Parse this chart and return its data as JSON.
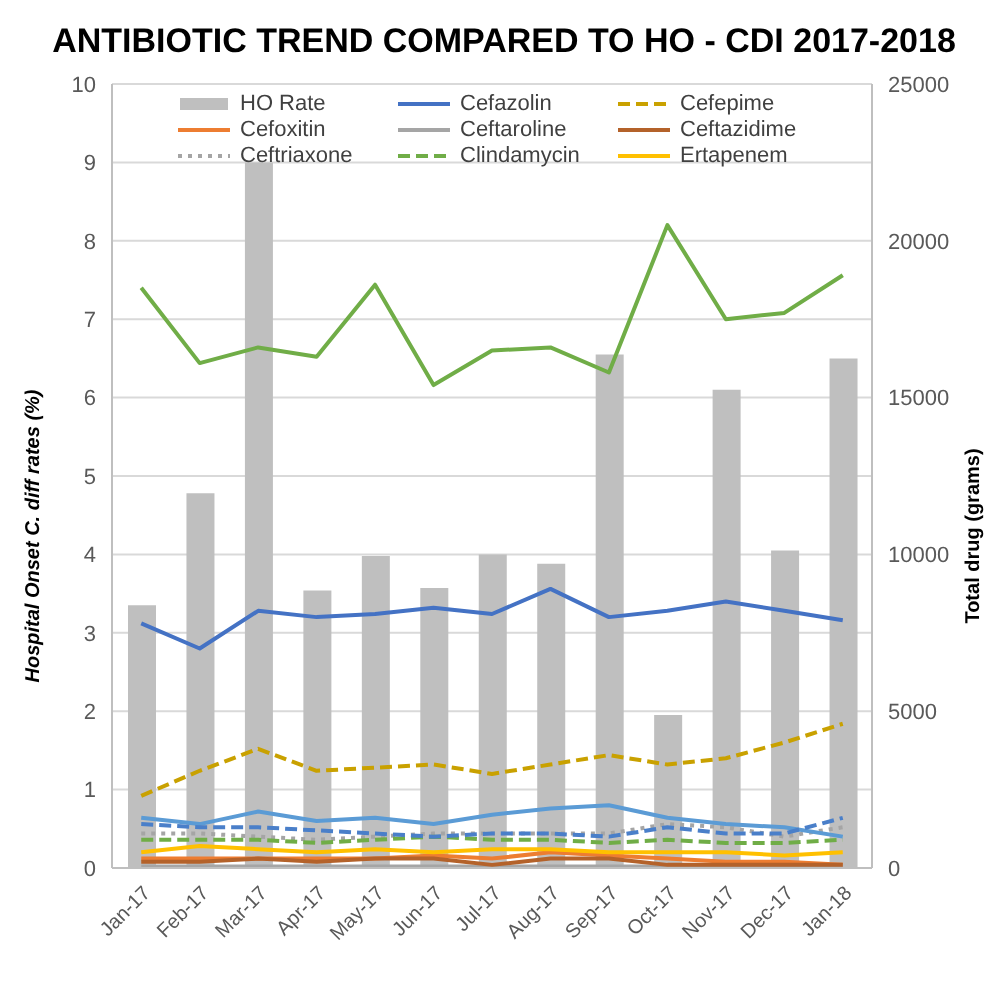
{
  "chart_data": {
    "type": "bar",
    "title": "ANTIBIOTIC TREND COMPARED TO HO - CDI 2017-2018",
    "ylabel": "Hospital Onset C. diff rates (%)",
    "y2label": "Total drug (grams)",
    "categories": [
      "Jan-17",
      "Feb-17",
      "Mar-17",
      "Apr-17",
      "May-17",
      "Jun-17",
      "Jul-17",
      "Aug-17",
      "Sep-17",
      "Oct-17",
      "Nov-17",
      "Dec-17",
      "Jan-18"
    ],
    "series": [
      {
        "name": "HO Rate",
        "color": "#bfbfbf",
        "values": [
          3.35,
          4.78,
          9.0,
          3.54,
          3.98,
          3.57,
          4.0,
          3.88,
          6.55,
          1.95,
          6.1,
          4.05,
          6.5
        ]
      },
      {
        "name": "Cefazolin",
        "type": "line",
        "axis": "y2",
        "color": "#4472c4",
        "line_style": "solid",
        "values": [
          7800,
          7000,
          8200,
          8000,
          8100,
          8300,
          8100,
          8900,
          8000,
          8200,
          8500,
          8200,
          7900
        ]
      },
      {
        "name": "Cefepime",
        "type": "line",
        "axis": "y2",
        "color": "#c9a100",
        "line_style": "dashed",
        "values": [
          2300,
          3100,
          3800,
          3100,
          3200,
          3300,
          3000,
          3300,
          3600,
          3300,
          3500,
          4000,
          4600
        ]
      },
      {
        "name": "Cefoxitin",
        "type": "line",
        "axis": "y2",
        "color": "#ed7d31",
        "line_style": "solid",
        "values": [
          300,
          300,
          300,
          300,
          300,
          400,
          300,
          500,
          400,
          300,
          200,
          200,
          100
        ]
      },
      {
        "name": "Ceftaroline",
        "type": "line",
        "axis": "y2",
        "color": "#a5a5a5",
        "line_style": "solid",
        "values": [
          50,
          50,
          50,
          50,
          50,
          50,
          50,
          50,
          50,
          50,
          50,
          50,
          50
        ]
      },
      {
        "name": "Ceftazidime",
        "type": "line",
        "axis": "y2",
        "color": "#b4622a",
        "line_style": "solid",
        "values": [
          200,
          200,
          300,
          200,
          300,
          300,
          100,
          300,
          300,
          100,
          100,
          100,
          100
        ]
      },
      {
        "name": "Ceftriaxone",
        "type": "line",
        "axis": "y2",
        "color": "#a5a5a5",
        "line_style": "dotted",
        "values": [
          1100,
          1100,
          1000,
          900,
          1000,
          1100,
          1100,
          1100,
          1100,
          1400,
          1300,
          1000,
          1300
        ]
      },
      {
        "name": "Clindamycin",
        "type": "line",
        "axis": "y2",
        "color": "#70ad47",
        "line_style": "dashed",
        "values": [
          900,
          900,
          900,
          800,
          900,
          1000,
          900,
          900,
          800,
          900,
          800,
          800,
          900
        ]
      },
      {
        "name": "Ertapenem",
        "type": "line",
        "axis": "y2",
        "color": "#ffc000",
        "line_style": "solid",
        "values": [
          500,
          700,
          600,
          500,
          600,
          500,
          600,
          600,
          500,
          500,
          500,
          400,
          500
        ]
      },
      {
        "type": "line",
        "axis": "y2",
        "color": "#70ad47",
        "line_style": "solid",
        "values": [
          18500,
          16100,
          16600,
          16300,
          18600,
          15400,
          16500,
          16600,
          15800,
          20500,
          17500,
          17700,
          18900
        ]
      },
      {
        "type": "line",
        "axis": "y2",
        "color": "#5b9bd5",
        "line_style": "solid",
        "values": [
          1600,
          1400,
          1800,
          1500,
          1600,
          1400,
          1700,
          1900,
          2000,
          1600,
          1400,
          1300,
          1000
        ]
      },
      {
        "type": "line",
        "axis": "y2",
        "color": "#4a7fc9",
        "line_style": "dashed",
        "values": [
          1400,
          1300,
          1300,
          1200,
          1100,
          1000,
          1100,
          1100,
          1000,
          1300,
          1100,
          1100,
          1600
        ]
      }
    ],
    "ylim": [
      0,
      10
    ],
    "yticks": [
      0,
      1,
      2,
      3,
      4,
      5,
      6,
      7,
      8,
      9,
      10
    ],
    "y2lim": [
      0,
      25000
    ],
    "y2ticks": [
      0,
      5000,
      10000,
      15000,
      20000,
      25000
    ],
    "grid": "y",
    "legend": "top",
    "marker": "none"
  }
}
